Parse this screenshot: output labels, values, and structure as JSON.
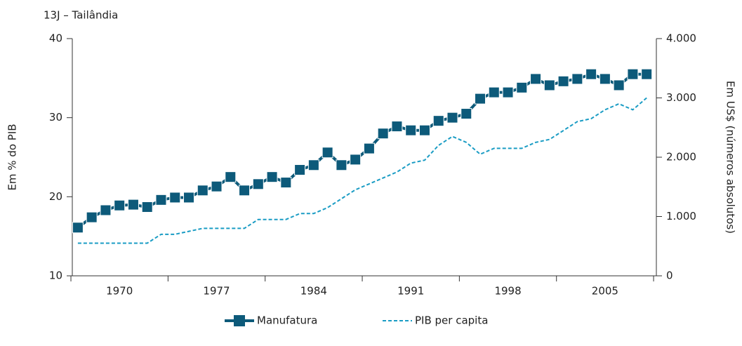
{
  "chart_data": {
    "type": "line",
    "title": "13J – Tailândia",
    "y_label": "Em % do PIB",
    "y2_label": "Em US$ (números absolutos)",
    "x": [
      1967,
      1968,
      1969,
      1970,
      1971,
      1972,
      1973,
      1974,
      1975,
      1976,
      1977,
      1978,
      1979,
      1980,
      1981,
      1982,
      1983,
      1984,
      1985,
      1986,
      1987,
      1988,
      1989,
      1990,
      1991,
      1992,
      1993,
      1994,
      1995,
      1996,
      1997,
      1998,
      1999,
      2000,
      2001,
      2002,
      2003,
      2004,
      2005,
      2006,
      2007,
      2008
    ],
    "xlim": [
      1966.6,
      2008.7
    ],
    "xticks": [
      1970,
      1977,
      1984,
      1991,
      1998,
      2005
    ],
    "ylim": [
      10,
      40
    ],
    "yticks": [
      10,
      20,
      30,
      40
    ],
    "y2lim": [
      0,
      4000
    ],
    "y2ticks": [
      0,
      {
        "value": 1000,
        "label": "1.000"
      },
      {
        "value": 2000,
        "label": "2.000"
      },
      {
        "value": 3000,
        "label": "3.000"
      },
      {
        "value": 4000,
        "label": "4.000"
      }
    ],
    "series": [
      {
        "name": "Manufatura",
        "color": "#0d5a7a",
        "marker": "square",
        "values": [
          16.1,
          17.4,
          18.3,
          18.9,
          19.0,
          18.7,
          19.6,
          19.9,
          19.9,
          20.8,
          21.3,
          22.5,
          20.8,
          21.6,
          22.5,
          21.8,
          23.4,
          24.0,
          25.6,
          24.0,
          24.7,
          26.1,
          28.0,
          28.9,
          28.4,
          28.4,
          29.6,
          30.0,
          30.5,
          32.4,
          33.2,
          33.2,
          33.8,
          34.9,
          34.1,
          34.6,
          34.9,
          35.5,
          34.9,
          34.1,
          35.5,
          35.5
        ]
      },
      {
        "name": "PIB per capita",
        "color": "#1a9cc4",
        "axis": "y2",
        "dashed": true,
        "values": [
          550,
          550,
          550,
          550,
          550,
          550,
          700,
          700,
          750,
          800,
          800,
          800,
          800,
          950,
          950,
          950,
          1050,
          1050,
          1150,
          1300,
          1450,
          1550,
          1650,
          1750,
          1900,
          1950,
          2200,
          2350,
          2250,
          2050,
          2150,
          2150,
          2150,
          2250,
          2300,
          2450,
          2600,
          2650,
          2800,
          2900,
          2800,
          3000
        ]
      }
    ]
  }
}
